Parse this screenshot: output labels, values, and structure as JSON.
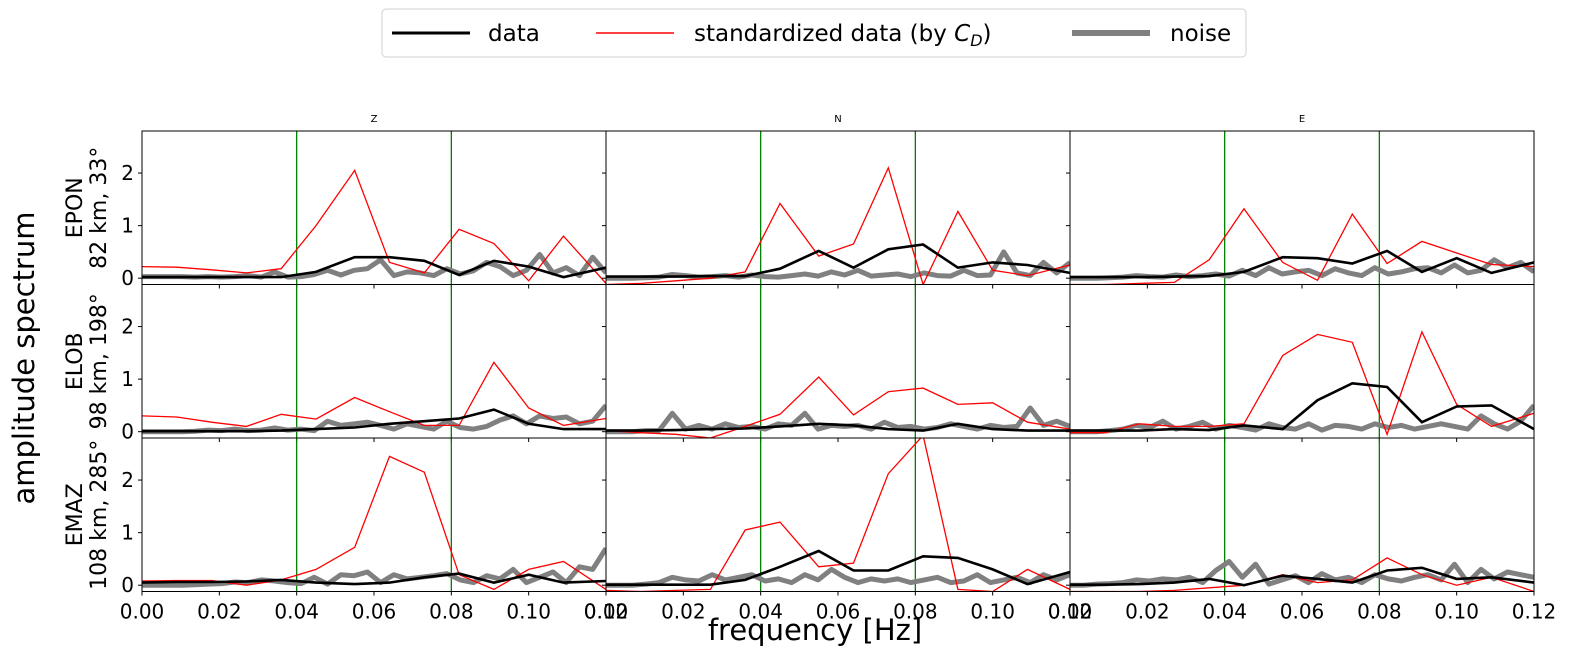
{
  "figure": {
    "ylabel": "amplitude spectrum",
    "xlabel": "frequency [Hz]",
    "legend": {
      "placement": "top-center",
      "entries": [
        {
          "label": "data",
          "color": "#000000",
          "style": "thick"
        },
        {
          "label": "standardized data (by C_D)",
          "color": "#ff0000",
          "style": "thin"
        },
        {
          "label": "noise",
          "color": "#808080",
          "style": "extra-thick"
        }
      ]
    }
  },
  "chart_data": {
    "type": "line",
    "columns": [
      "Z",
      "N",
      "E"
    ],
    "rows": [
      {
        "station": "EPON",
        "info": "82 km, 33°"
      },
      {
        "station": "ELOB",
        "info": "98 km, 198°"
      },
      {
        "station": "EMAZ",
        "info": "108 km, 285°"
      }
    ],
    "xlim": [
      0,
      0.12
    ],
    "ylim": [
      -0.12,
      2.8
    ],
    "xticks": [
      0.0,
      0.02,
      0.04,
      0.06,
      0.08,
      0.1,
      0.12
    ],
    "xtick_labels": [
      "0.00",
      "0.02",
      "0.04",
      "0.06",
      "0.08",
      "0.10",
      "0.12"
    ],
    "yticks": [
      0,
      1,
      2
    ],
    "vlines": [
      0.04,
      0.08
    ],
    "vline_color": "#008000",
    "grid": false,
    "panels": [
      [
        {
          "x": [
            0,
            0.009,
            0.018,
            0.027,
            0.036,
            0.045,
            0.055,
            0.064,
            0.073,
            0.082,
            0.091,
            0.1,
            0.109,
            0.12
          ],
          "data": [
            0.02,
            0.02,
            0.02,
            0.02,
            0.02,
            0.12,
            0.4,
            0.4,
            0.33,
            0.06,
            0.33,
            0.22,
            0.02,
            0.2
          ],
          "standardized": [
            0.22,
            0.21,
            0.16,
            0.1,
            0.18,
            1.0,
            2.05,
            0.3,
            0.1,
            0.93,
            0.66,
            -0.05,
            0.8,
            -0.1
          ],
          "noise": [
            0.03,
            0.03,
            0.03,
            0.03,
            0.02,
            0.03,
            0.02,
            0.03,
            0.05,
            0.02,
            0.12,
            0.02,
            0.03,
            0.07,
            0.15,
            0.06,
            0.15,
            0.18,
            0.35,
            0.05,
            0.12,
            0.1,
            0.05,
            0.18,
            0.08,
            0.14,
            0.3,
            0.22,
            0.05,
            0.15,
            0.45,
            0.1,
            0.2,
            0.05,
            0.4,
            0.1
          ]
        },
        {
          "x": [
            0,
            0.009,
            0.018,
            0.027,
            0.036,
            0.045,
            0.055,
            0.064,
            0.073,
            0.082,
            0.091,
            0.1,
            0.109,
            0.12
          ],
          "data": [
            0.03,
            0.03,
            0.03,
            0.04,
            0.04,
            0.18,
            0.52,
            0.2,
            0.55,
            0.64,
            0.2,
            0.3,
            0.25,
            0.1
          ],
          "standardized": [
            -0.12,
            -0.1,
            -0.05,
            0.0,
            0.12,
            1.42,
            0.42,
            0.65,
            2.1,
            -0.12,
            1.27,
            0.15,
            0.05,
            0.25
          ],
          "noise": [
            0.0,
            0.0,
            0.0,
            0.01,
            0.02,
            0.07,
            0.05,
            0.02,
            0.03,
            0.05,
            0.02,
            0.06,
            0.03,
            0.02,
            0.05,
            0.08,
            0.04,
            0.12,
            0.06,
            0.15,
            0.04,
            0.06,
            0.08,
            0.03,
            0.1,
            0.05,
            0.04,
            0.15,
            0.05,
            0.06,
            0.5,
            0.1,
            0.05,
            0.3,
            0.1,
            0.3
          ]
        },
        {
          "x": [
            0,
            0.009,
            0.018,
            0.027,
            0.036,
            0.045,
            0.055,
            0.064,
            0.073,
            0.082,
            0.091,
            0.1,
            0.109,
            0.12
          ],
          "data": [
            0.02,
            0.02,
            0.02,
            0.03,
            0.04,
            0.12,
            0.4,
            0.38,
            0.28,
            0.52,
            0.12,
            0.38,
            0.1,
            0.3
          ],
          "standardized": [
            -0.12,
            -0.12,
            -0.1,
            -0.08,
            0.35,
            1.32,
            0.3,
            -0.04,
            1.22,
            0.28,
            0.7,
            0.48,
            0.26,
            0.22
          ],
          "noise": [
            0.0,
            0.0,
            0.0,
            0.01,
            0.02,
            0.05,
            0.03,
            0.02,
            0.06,
            0.03,
            0.05,
            0.08,
            0.04,
            0.15,
            0.05,
            0.2,
            0.08,
            0.12,
            0.15,
            0.05,
            0.18,
            0.1,
            0.05,
            0.2,
            0.08,
            0.12,
            0.18,
            0.2,
            0.1,
            0.25,
            0.1,
            0.15,
            0.35,
            0.2,
            0.3,
            0.12
          ]
        }
      ],
      [
        {
          "x": [
            0,
            0.009,
            0.018,
            0.027,
            0.036,
            0.045,
            0.055,
            0.064,
            0.073,
            0.082,
            0.091,
            0.1,
            0.109,
            0.12
          ],
          "data": [
            0.01,
            0.01,
            0.01,
            0.01,
            0.02,
            0.05,
            0.08,
            0.15,
            0.2,
            0.25,
            0.42,
            0.15,
            0.05,
            0.05
          ],
          "standardized": [
            0.3,
            0.28,
            0.18,
            0.1,
            0.33,
            0.24,
            0.65,
            0.38,
            0.12,
            0.12,
            1.32,
            0.45,
            0.12,
            0.25
          ],
          "noise": [
            0.0,
            0.0,
            0.0,
            0.0,
            0.01,
            0.03,
            0.02,
            0.05,
            0.02,
            0.03,
            0.07,
            0.03,
            0.05,
            0.02,
            0.2,
            0.12,
            0.15,
            0.18,
            0.12,
            0.05,
            0.15,
            0.1,
            0.05,
            0.2,
            0.08,
            0.05,
            0.1,
            0.22,
            0.3,
            0.15,
            0.3,
            0.25,
            0.28,
            0.15,
            0.2,
            0.5
          ]
        },
        {
          "x": [
            0,
            0.009,
            0.018,
            0.027,
            0.036,
            0.045,
            0.055,
            0.064,
            0.073,
            0.082,
            0.091,
            0.1,
            0.109,
            0.12
          ],
          "data": [
            0.02,
            0.02,
            0.03,
            0.05,
            0.06,
            0.1,
            0.15,
            0.12,
            0.05,
            0.02,
            0.15,
            0.05,
            0.02,
            0.02
          ],
          "standardized": [
            0.02,
            -0.02,
            -0.05,
            -0.12,
            0.1,
            0.33,
            1.04,
            0.32,
            0.76,
            0.83,
            0.52,
            0.55,
            0.18,
            0.05
          ],
          "noise": [
            0.0,
            0.0,
            0.0,
            0.02,
            0.02,
            0.35,
            0.05,
            0.12,
            0.05,
            0.15,
            0.08,
            0.1,
            0.05,
            0.15,
            0.12,
            0.35,
            0.05,
            0.12,
            0.1,
            0.12,
            0.05,
            0.18,
            0.08,
            0.1,
            0.05,
            0.08,
            0.15,
            0.1,
            0.05,
            0.12,
            0.08,
            0.1,
            0.45,
            0.12,
            0.2,
            0.1
          ]
        },
        {
          "x": [
            0,
            0.009,
            0.018,
            0.027,
            0.036,
            0.045,
            0.055,
            0.064,
            0.073,
            0.082,
            0.091,
            0.1,
            0.109,
            0.12
          ],
          "data": [
            0.02,
            0.02,
            0.02,
            0.05,
            0.03,
            0.12,
            0.05,
            0.6,
            0.92,
            0.85,
            0.18,
            0.48,
            0.5,
            0.05
          ],
          "standardized": [
            -0.02,
            -0.02,
            0.15,
            0.1,
            0.1,
            0.15,
            1.45,
            1.85,
            1.7,
            -0.05,
            1.9,
            0.52,
            0.1,
            0.35
          ],
          "noise": [
            0.0,
            0.0,
            0.0,
            0.02,
            0.05,
            0.12,
            0.08,
            0.2,
            0.05,
            0.1,
            0.18,
            0.05,
            0.12,
            0.08,
            0.03,
            0.15,
            0.08,
            0.05,
            0.15,
            0.03,
            0.12,
            0.1,
            0.05,
            0.15,
            0.08,
            0.12,
            0.05,
            0.1,
            0.15,
            0.1,
            0.05,
            0.3,
            0.15,
            0.05,
            0.2,
            0.5
          ]
        }
      ],
      [
        {
          "x": [
            0,
            0.009,
            0.018,
            0.027,
            0.036,
            0.045,
            0.055,
            0.064,
            0.073,
            0.082,
            0.091,
            0.1,
            0.109,
            0.12
          ],
          "data": [
            0.05,
            0.06,
            0.06,
            0.07,
            0.1,
            0.05,
            0.02,
            0.05,
            0.15,
            0.22,
            0.05,
            0.2,
            0.05,
            0.08
          ],
          "standardized": [
            0.08,
            0.09,
            0.09,
            0.0,
            0.1,
            0.3,
            0.72,
            2.45,
            2.15,
            0.2,
            -0.08,
            0.3,
            0.45,
            -0.08
          ],
          "noise": [
            0.0,
            0.0,
            0.0,
            0.0,
            0.01,
            0.02,
            0.03,
            0.06,
            0.05,
            0.1,
            0.08,
            0.05,
            0.03,
            0.15,
            0.02,
            0.2,
            0.18,
            0.25,
            0.05,
            0.2,
            0.12,
            0.15,
            0.18,
            0.22,
            0.1,
            0.05,
            0.18,
            0.12,
            0.3,
            0.05,
            0.15,
            0.25,
            0.05,
            0.35,
            0.3,
            0.7
          ]
        },
        {
          "x": [
            0,
            0.009,
            0.018,
            0.027,
            0.036,
            0.045,
            0.055,
            0.064,
            0.073,
            0.082,
            0.091,
            0.1,
            0.109,
            0.12
          ],
          "data": [
            0.01,
            0.01,
            0.01,
            0.01,
            0.1,
            0.35,
            0.65,
            0.28,
            0.28,
            0.55,
            0.52,
            0.3,
            0.02,
            0.25
          ],
          "standardized": [
            -0.1,
            -0.12,
            -0.1,
            -0.08,
            1.05,
            1.2,
            0.35,
            0.42,
            2.12,
            2.85,
            -0.08,
            -0.12,
            0.3,
            -0.08
          ],
          "noise": [
            0.0,
            0.0,
            0.0,
            0.02,
            0.05,
            0.15,
            0.1,
            0.08,
            0.2,
            0.1,
            0.15,
            0.2,
            0.08,
            0.12,
            0.05,
            0.2,
            0.1,
            0.3,
            0.15,
            0.05,
            0.12,
            0.08,
            0.12,
            0.05,
            0.1,
            0.15,
            0.05,
            0.08,
            0.2,
            0.05,
            0.1,
            0.15,
            0.05,
            0.2,
            0.1,
            0.2
          ]
        },
        {
          "x": [
            0,
            0.009,
            0.018,
            0.027,
            0.036,
            0.045,
            0.055,
            0.064,
            0.073,
            0.082,
            0.091,
            0.1,
            0.109,
            0.12
          ],
          "data": [
            0.01,
            0.01,
            0.02,
            0.05,
            0.12,
            0.0,
            0.18,
            0.12,
            0.05,
            0.28,
            0.33,
            0.12,
            0.15,
            0.05
          ],
          "standardized": [
            -0.12,
            -0.12,
            -0.12,
            -0.1,
            -0.05,
            0.0,
            0.2,
            0.05,
            0.1,
            0.52,
            0.2,
            0.0,
            0.15,
            -0.12
          ],
          "noise": [
            0.0,
            0.0,
            0.02,
            0.03,
            0.05,
            0.1,
            0.08,
            0.12,
            0.1,
            0.15,
            0.05,
            0.28,
            0.45,
            0.15,
            0.4,
            0.02,
            0.1,
            0.18,
            0.05,
            0.22,
            0.1,
            0.15,
            0.05,
            0.2,
            0.12,
            0.08,
            0.15,
            0.2,
            0.1,
            0.4,
            0.05,
            0.3,
            0.12,
            0.25,
            0.2,
            0.15
          ]
        }
      ]
    ]
  }
}
